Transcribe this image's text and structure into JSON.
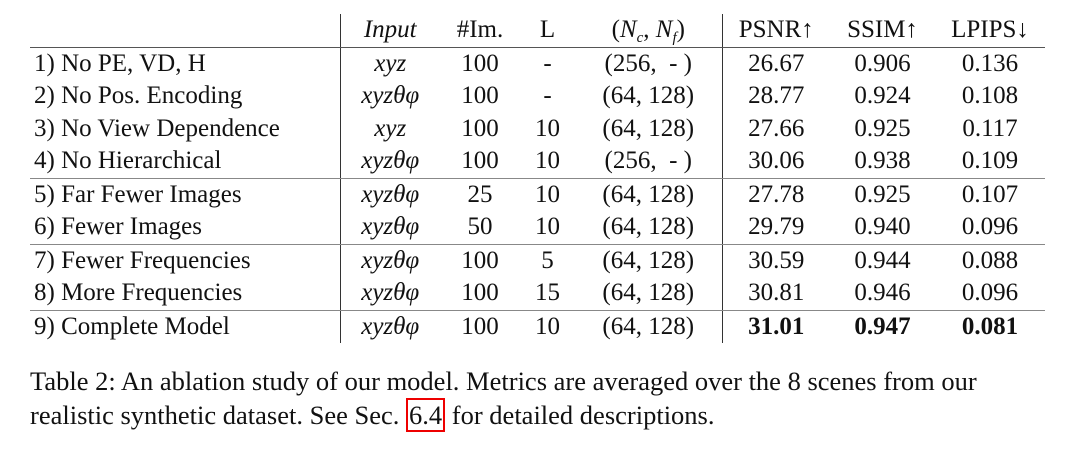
{
  "table": {
    "header": [
      "",
      "Input",
      "#Im.",
      "L",
      [
        "(",
        "N",
        "c",
        ",",
        "N",
        "f",
        ")"
      ],
      "PSNR↑",
      "SSIM↑",
      "LPIPS↓"
    ],
    "rows": [
      [
        "1) No PE, VD, H",
        "xyz",
        "100",
        "-",
        "(256,  - )",
        "26.67",
        "0.906",
        "0.136"
      ],
      [
        "2) No Pos. Encoding",
        "xyzθφ",
        "100",
        "-",
        "(64, 128)",
        "28.77",
        "0.924",
        "0.108"
      ],
      [
        "3) No View Dependence",
        "xyz",
        "100",
        "10",
        "(64, 128)",
        "27.66",
        "0.925",
        "0.117"
      ],
      [
        "4) No Hierarchical",
        "xyzθφ",
        "100",
        "10",
        "(256,  - )",
        "30.06",
        "0.938",
        "0.109"
      ],
      [
        "5) Far Fewer Images",
        "xyzθφ",
        "25",
        "10",
        "(64, 128)",
        "27.78",
        "0.925",
        "0.107"
      ],
      [
        "6) Fewer Images",
        "xyzθφ",
        "50",
        "10",
        "(64, 128)",
        "29.79",
        "0.940",
        "0.096"
      ],
      [
        "7) Fewer Frequencies",
        "xyzθφ",
        "100",
        "5",
        "(64, 128)",
        "30.59",
        "0.944",
        "0.088"
      ],
      [
        "8) More Frequencies",
        "xyzθφ",
        "100",
        "15",
        "(64, 128)",
        "30.81",
        "0.946",
        "0.096"
      ],
      [
        "9) Complete Model",
        "xyzθφ",
        "100",
        "10",
        "(64, 128)",
        "31.01",
        "0.947",
        "0.081"
      ]
    ]
  },
  "caption": {
    "text": "Table 2: An ablation study of our model. Metrics are averaged over the 8 scenes from our realistic synthetic dataset. See Sec.",
    "link": "6.4",
    "tail": "for detailed descriptions."
  }
}
